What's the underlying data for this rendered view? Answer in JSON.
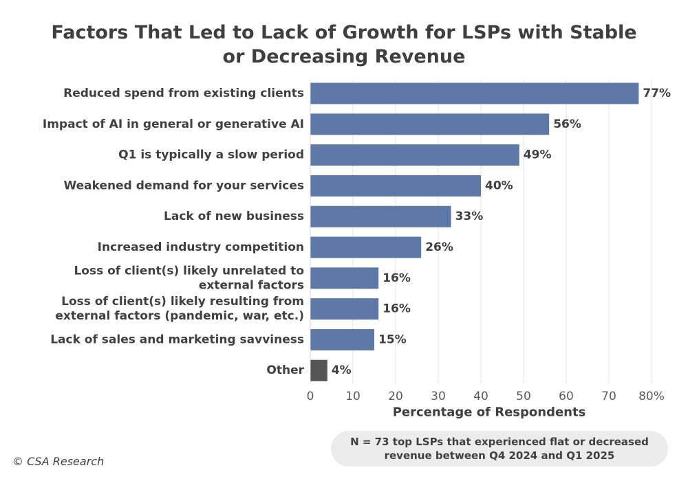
{
  "title_lines": [
    "Factors That Led to Lack of Growth for LSPs with Stable",
    "or Decreasing Revenue"
  ],
  "note_lines": [
    "N = 73 top LSPs that experienced flat or decreased",
    "revenue between Q4 2024 and Q1 2025"
  ],
  "copyright": "© CSA Research",
  "colors": {
    "bar": "#5e78a8",
    "other_bar": "#555555",
    "grid": "#e6e6e6",
    "text": "#404040"
  },
  "chart_data": {
    "type": "bar",
    "orientation": "horizontal",
    "title": "Factors That Led to Lack of Growth for LSPs with Stable or Decreasing Revenue",
    "xlabel": "Percentage of Respondents",
    "ylabel": "",
    "xlim": [
      0,
      80
    ],
    "xticks": [
      "0",
      "10",
      "20",
      "30",
      "40",
      "50",
      "60",
      "70",
      "80%"
    ],
    "grid": true,
    "categories": [
      [
        "Reduced spend from existing clients"
      ],
      [
        "Impact of AI in general or generative AI"
      ],
      [
        "Q1 is typically a slow period"
      ],
      [
        "Weakened demand for your services"
      ],
      [
        "Lack of new business"
      ],
      [
        "Increased industry competition"
      ],
      [
        "Loss of client(s) likely unrelated to",
        "external factors"
      ],
      [
        "Loss of client(s) likely resulting from",
        "external factors (pandemic, war, etc.)"
      ],
      [
        "Lack of sales and marketing savviness"
      ],
      [
        "Other"
      ]
    ],
    "values": [
      77,
      56,
      49,
      40,
      33,
      26,
      16,
      16,
      15,
      4
    ],
    "value_labels": [
      "77%",
      "56%",
      "49%",
      "40%",
      "33%",
      "26%",
      "16%",
      "16%",
      "15%",
      "4%"
    ]
  }
}
